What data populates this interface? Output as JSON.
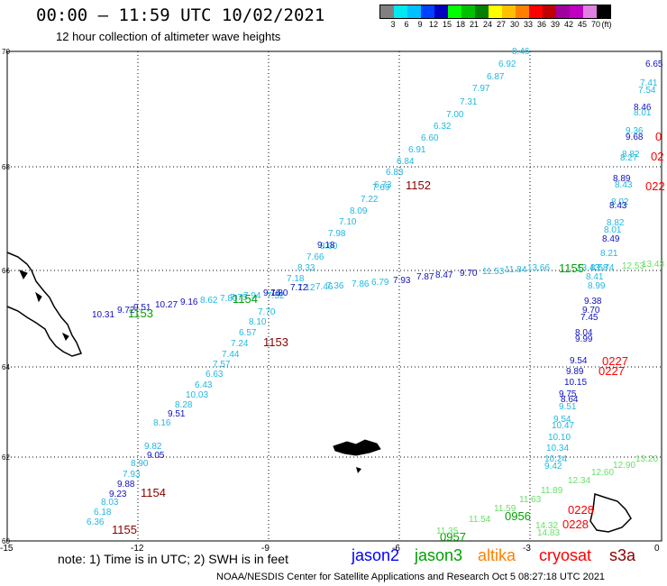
{
  "header": {
    "title": "00:00 – 11:59 UTC 10/02/2021",
    "subtitle": "12 hour collection of altimeter wave heights"
  },
  "colorbar": {
    "unit": "(ft)",
    "ticks": [
      "3",
      "6",
      "9",
      "12",
      "15",
      "18",
      "21",
      "24",
      "27",
      "30",
      "33",
      "36",
      "39",
      "42",
      "45",
      "70"
    ],
    "colors": [
      "#808080",
      "#00e8f0",
      "#00c0ff",
      "#0040ff",
      "#0000c0",
      "#00ff00",
      "#00c000",
      "#008000",
      "#ffff00",
      "#ffc000",
      "#ff8000",
      "#ff0000",
      "#c00000",
      "#a000a0",
      "#c000c0",
      "#e080e0",
      "#000000"
    ]
  },
  "axes": {
    "x_ticks": [
      "-15",
      "-12",
      "-9",
      "-6",
      "-3",
      "0"
    ],
    "y_ticks": [
      "70",
      "68",
      "66",
      "64",
      "62",
      "60"
    ]
  },
  "tracks": {
    "cyan_a": [
      "8.46",
      "6.92",
      "6.87",
      "7.97",
      "7.31",
      "7.00",
      "6.32",
      "6.60",
      "6.91",
      "6.84",
      "6.83",
      "6.73",
      "7.69",
      "7.22",
      "8.09",
      "7.10",
      "7.98",
      "8.00",
      "7.66",
      "8.33",
      "7.18",
      "7.52",
      "7.70",
      "8.10",
      "6.57",
      "7.24",
      "7.44",
      "7.57",
      "6.63",
      "6.43",
      "10.03",
      "8.28",
      "8.16",
      "9.82",
      "8.90",
      "7.93",
      "8.03",
      "6.18",
      "6.36"
    ],
    "blue_a": [
      "9.18",
      "9.16",
      "9.51",
      "9.05",
      "9.88",
      "9.23",
      "9.17"
    ],
    "cyan_b": [
      "8.62",
      "7.80",
      "7.75",
      "7.94",
      "7.12",
      "7.46",
      "7.36",
      "7.86",
      "6.79",
      "7.93",
      "7.87",
      "8.47",
      "9.70",
      "11.53",
      "11.84",
      "13.66",
      "13.43",
      "8.58",
      "8.41",
      "8.99",
      "9.38",
      "9.70",
      "7.45",
      "8.04",
      "9.99",
      "9.54",
      "9.89",
      "10.15",
      "9.75",
      "8.64",
      "9.51",
      "9.54",
      "10.47",
      "10.10",
      "10.34",
      "10.24",
      "9.42"
    ],
    "blue_b": [
      "10.31",
      "9.72",
      "9.51",
      "10.27",
      "9.16",
      "7.80",
      "7.12"
    ],
    "right_col": [
      "6.65",
      "7.41",
      "7.54",
      "8.46",
      "8.01",
      "9.36",
      "9.68",
      "8.82",
      "8.27",
      "8.89",
      "8.43",
      "8.02",
      "8.43",
      "8.82",
      "8.01",
      "8.49",
      "8.21",
      "7.74"
    ],
    "green_right": [
      "12.53",
      "13.43"
    ],
    "passtimes": {
      "g1": "1153",
      "g2": "1154",
      "g3": "1155",
      "r1": "1152",
      "r2": "1153",
      "r3": "1154",
      "r4": "1155",
      "red1": "0",
      "red2": "02",
      "red3": "022",
      "red4": "0227",
      "red5": "0227",
      "red6": "0228",
      "red7": "0228",
      "bot1": "0956",
      "bot2": "0957"
    },
    "bottom_green": [
      "11.35",
      "11.54",
      "11.59",
      "11.63",
      "11.89",
      "12.34",
      "12.60",
      "12.90",
      "13.20",
      "14.32",
      "14.83"
    ]
  },
  "note": "note: 1) Time is in UTC; 2) SWH is in feet",
  "legend": [
    {
      "label": "jason2",
      "color": "#0000ff"
    },
    {
      "label": "jason3",
      "color": "#00a000"
    },
    {
      "label": "altika",
      "color": "#ff8000"
    },
    {
      "label": "cryosat",
      "color": "#ff0000"
    },
    {
      "label": "s3a",
      "color": "#8b0000"
    }
  ],
  "footer": "NOAA/NESDIS Center for Satellite Applications and Research    Oct  5 08:27:18 UTC 2021"
}
